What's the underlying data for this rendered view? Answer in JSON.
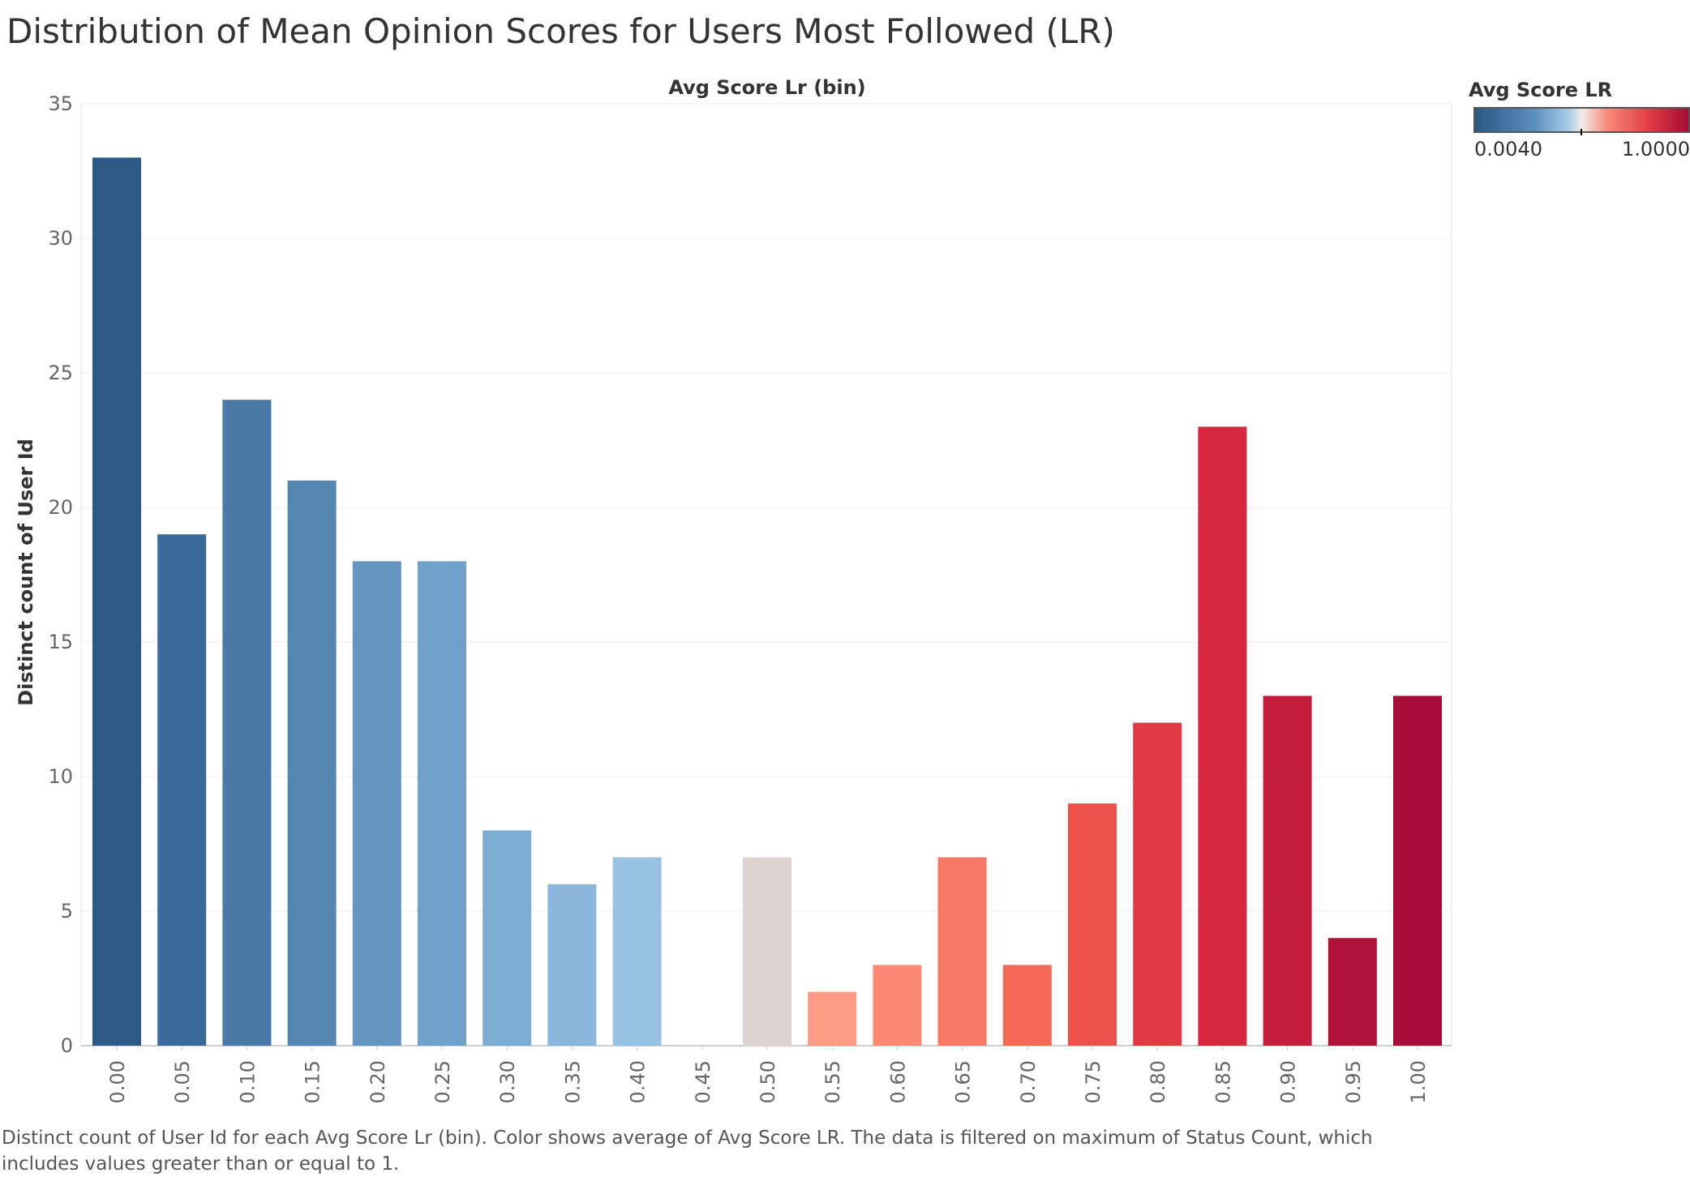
{
  "title": "Distribution of Mean Opinion Scores for Users Most Followed (LR)",
  "caption": "Distinct count of User Id for each Avg Score Lr (bin).  Color shows average of Avg Score LR. The data is filtered on maximum of Status Count, which includes values greater than or equal to 1.",
  "legend": {
    "title": "Avg Score LR",
    "min_label": "0.0040",
    "max_label": "1.0000"
  },
  "chart_data": {
    "type": "bar",
    "title": "Distribution of Mean Opinion Scores for Users Most Followed (LR)",
    "xlabel": "Avg Score Lr (bin)",
    "ylabel": "Distinct count of User Id",
    "categories": [
      "0.00",
      "0.05",
      "0.10",
      "0.15",
      "0.20",
      "0.25",
      "0.30",
      "0.35",
      "0.40",
      "0.45",
      "0.50",
      "0.55",
      "0.60",
      "0.65",
      "0.70",
      "0.75",
      "0.80",
      "0.85",
      "0.90",
      "0.95",
      "1.00"
    ],
    "values": [
      33,
      19,
      24,
      21,
      18,
      18,
      8,
      6,
      7,
      0,
      7,
      2,
      3,
      7,
      3,
      9,
      12,
      23,
      13,
      4,
      13
    ],
    "colors": [
      "#2c5986",
      "#3b6a98",
      "#4a79a5",
      "#5687b2",
      "#6395c0",
      "#6ea0c9",
      "#7eadd3",
      "#8ab8dc",
      "#97c2e1",
      "#ffffff",
      "#ddd3d1",
      "#fb9a85",
      "#fa8a74",
      "#f47863",
      "#f26a55",
      "#ec5249",
      "#e03b44",
      "#d5283f",
      "#c51d3c",
      "#b11238",
      "#a50c36"
    ],
    "yticks": [
      0,
      5,
      10,
      15,
      20,
      25,
      30,
      35
    ],
    "ylim": [
      0,
      35
    ],
    "grid": true
  }
}
